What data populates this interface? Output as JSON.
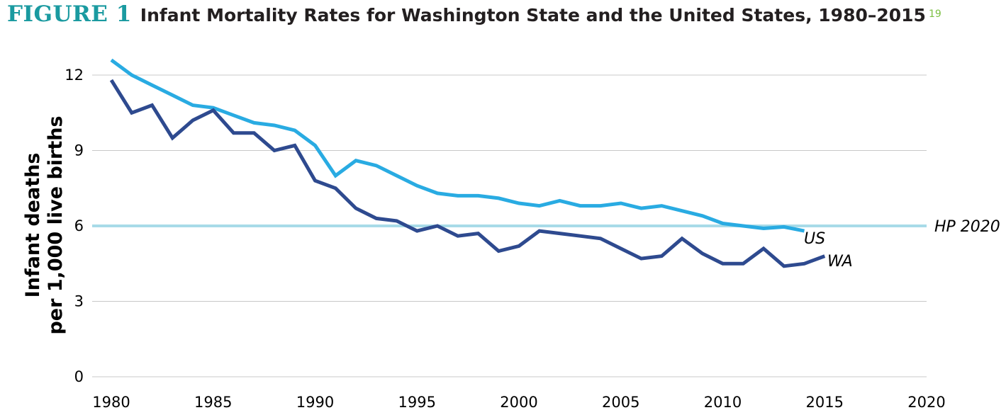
{
  "header": {
    "figure_label": "FIGURE 1",
    "title": "Infant Mortality Rates for Washington State and the United States, 1980–2015",
    "reference": "19"
  },
  "colors": {
    "us": "#29abe2",
    "wa": "#2e4a8f",
    "hp2020": "#a8dbe8",
    "grid": "#c8c8c8",
    "figure_label": "#1a9aa0",
    "reference": "#7bbf42"
  },
  "chart_data": {
    "type": "line",
    "ylabel": [
      "Infant deaths",
      "per 1,000 live births"
    ],
    "xlim": [
      1980,
      2020
    ],
    "ylim": [
      0,
      12.5
    ],
    "x_ticks": [
      1980,
      1985,
      1990,
      1995,
      2000,
      2005,
      2010,
      2015,
      2020
    ],
    "y_ticks": [
      0,
      3,
      6,
      9,
      12
    ],
    "grid": "horizontal",
    "series": [
      {
        "name": "US",
        "x": [
          1980,
          1981,
          1982,
          1983,
          1984,
          1985,
          1986,
          1987,
          1988,
          1989,
          1990,
          1991,
          1992,
          1993,
          1994,
          1995,
          1996,
          1997,
          1998,
          1999,
          2000,
          2001,
          2002,
          2003,
          2004,
          2005,
          2006,
          2007,
          2008,
          2009,
          2010,
          2011,
          2012,
          2013,
          2014
        ],
        "values": [
          12.6,
          12.0,
          11.6,
          11.2,
          10.8,
          10.7,
          10.4,
          10.1,
          10.0,
          9.8,
          9.2,
          8.0,
          8.6,
          8.4,
          8.0,
          7.6,
          7.3,
          7.2,
          7.2,
          7.1,
          6.9,
          6.8,
          7.0,
          6.8,
          6.8,
          6.9,
          6.7,
          6.8,
          6.6,
          6.4,
          6.1,
          6.0,
          5.9,
          5.96,
          5.8
        ]
      },
      {
        "name": "WA",
        "x": [
          1980,
          1981,
          1982,
          1983,
          1984,
          1985,
          1986,
          1987,
          1988,
          1989,
          1990,
          1991,
          1992,
          1993,
          1994,
          1995,
          1996,
          1997,
          1998,
          1999,
          2000,
          2001,
          2002,
          2003,
          2004,
          2005,
          2006,
          2007,
          2008,
          2009,
          2010,
          2011,
          2012,
          2013,
          2014,
          2015
        ],
        "values": [
          11.8,
          10.5,
          10.8,
          9.5,
          10.2,
          10.6,
          9.7,
          9.7,
          9.0,
          9.2,
          7.8,
          7.5,
          6.7,
          6.3,
          6.2,
          5.8,
          6.0,
          5.6,
          5.7,
          5.0,
          5.2,
          5.8,
          5.7,
          5.6,
          5.5,
          5.1,
          4.7,
          4.8,
          5.5,
          4.9,
          4.5,
          4.5,
          5.1,
          4.4,
          4.5,
          4.8
        ]
      }
    ],
    "reference_line": {
      "label": "HP 2020",
      "value": 6.0
    }
  }
}
